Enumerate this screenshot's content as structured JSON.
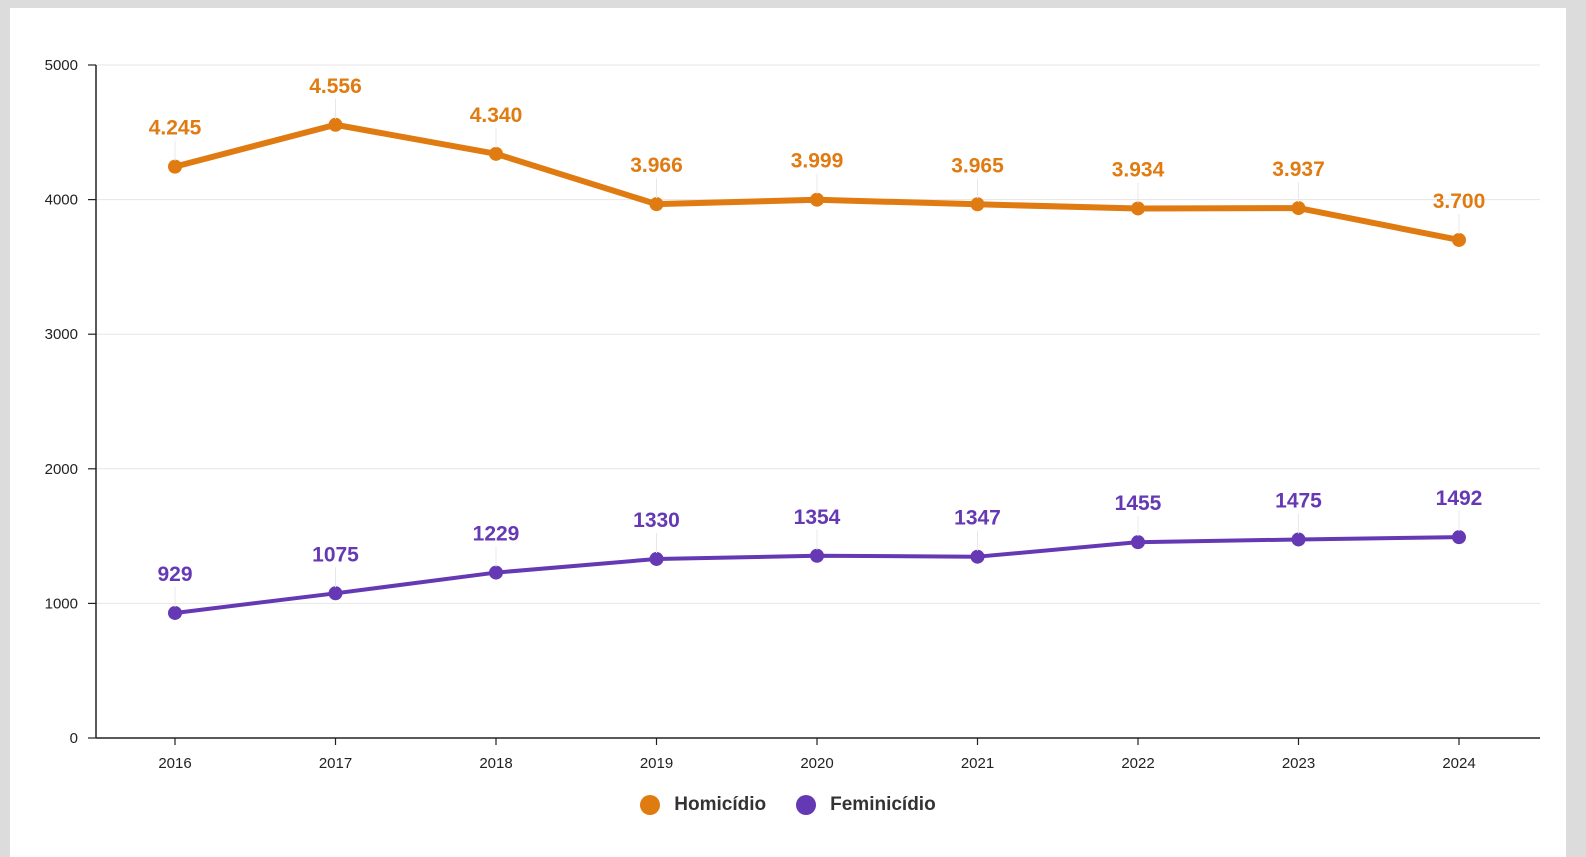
{
  "chart_data": {
    "type": "line",
    "title": "",
    "xlabel": "",
    "ylabel": "",
    "x": [
      "2016",
      "2017",
      "2018",
      "2019",
      "2020",
      "2021",
      "2022",
      "2023",
      "2024"
    ],
    "ylim": [
      0,
      5000
    ],
    "yticks": [
      "0",
      "1000",
      "2000",
      "3000",
      "4000",
      "5000"
    ],
    "grid": true,
    "legend_position": "bottom-center",
    "series": [
      {
        "name": "Homicídio",
        "color": "#e07b12",
        "values": [
          4245,
          4556,
          4340,
          3966,
          3999,
          3965,
          3934,
          3937,
          3700
        ],
        "labels": [
          "4.245",
          "4.556",
          "4.340",
          "3.966",
          "3.999",
          "3.965",
          "3.934",
          "3.937",
          "3.700"
        ]
      },
      {
        "name": "Feminicídio",
        "color": "#6538b4",
        "values": [
          929,
          1075,
          1229,
          1330,
          1354,
          1347,
          1455,
          1475,
          1492
        ],
        "labels": [
          "929",
          "1075",
          "1229",
          "1330",
          "1354",
          "1347",
          "1455",
          "1475",
          "1492"
        ]
      }
    ]
  },
  "legend": {
    "items": [
      {
        "label": "Homicídio",
        "color": "#e07b12"
      },
      {
        "label": "Feminicídio",
        "color": "#6538b4"
      }
    ]
  }
}
